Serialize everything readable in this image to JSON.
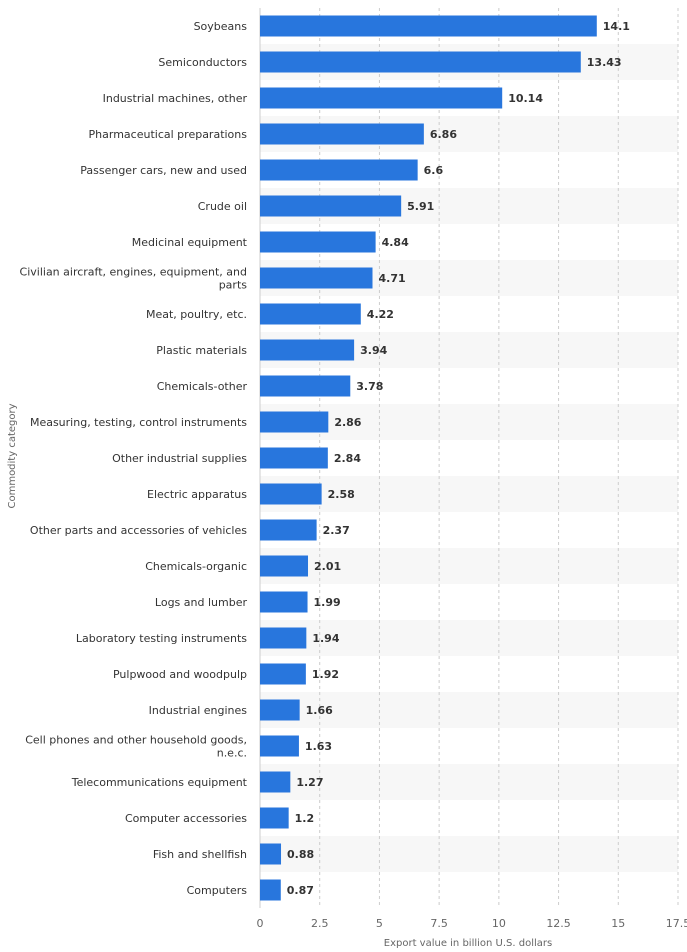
{
  "chart_data": {
    "type": "bar",
    "orientation": "horizontal",
    "categories": [
      "Soybeans",
      "Semiconductors",
      "Industrial machines, other",
      "Pharmaceutical preparations",
      "Passenger cars, new and used",
      "Crude oil",
      "Medicinal equipment",
      "Civilian aircraft, engines, equipment, and parts",
      "Meat, poultry, etc.",
      "Plastic materials",
      "Chemicals-other",
      "Measuring, testing, control instruments",
      "Other industrial supplies",
      "Electric apparatus",
      "Other parts and accessories of vehicles",
      "Chemicals-organic",
      "Logs and lumber",
      "Laboratory testing instruments",
      "Pulpwood and woodpulp",
      "Industrial engines",
      "Cell phones and other household goods, n.e.c.",
      "Telecommunications equipment",
      "Computer accessories",
      "Fish and shellfish",
      "Computers"
    ],
    "category_lines": [
      [
        "Soybeans"
      ],
      [
        "Semiconductors"
      ],
      [
        "Industrial machines, other"
      ],
      [
        "Pharmaceutical preparations"
      ],
      [
        "Passenger cars, new and used"
      ],
      [
        "Crude oil"
      ],
      [
        "Medicinal equipment"
      ],
      [
        "Civilian aircraft, engines, equipment, and",
        "parts"
      ],
      [
        "Meat, poultry, etc."
      ],
      [
        "Plastic materials"
      ],
      [
        "Chemicals-other"
      ],
      [
        "Measuring, testing, control instruments"
      ],
      [
        "Other industrial supplies"
      ],
      [
        "Electric apparatus"
      ],
      [
        "Other parts and accessories of vehicles"
      ],
      [
        "Chemicals-organic"
      ],
      [
        "Logs and lumber"
      ],
      [
        "Laboratory testing instruments"
      ],
      [
        "Pulpwood and woodpulp"
      ],
      [
        "Industrial engines"
      ],
      [
        "Cell phones and other household goods,",
        "n.e.c."
      ],
      [
        "Telecommunications equipment"
      ],
      [
        "Computer accessories"
      ],
      [
        "Fish and shellfish"
      ],
      [
        "Computers"
      ]
    ],
    "values": [
      14.1,
      13.43,
      10.14,
      6.86,
      6.6,
      5.91,
      4.84,
      4.71,
      4.22,
      3.94,
      3.78,
      2.86,
      2.84,
      2.58,
      2.37,
      2.01,
      1.99,
      1.94,
      1.92,
      1.66,
      1.63,
      1.27,
      1.2,
      0.88,
      0.87
    ],
    "value_labels": [
      "14.1",
      "13.43",
      "10.14",
      "6.86",
      "6.6",
      "5.91",
      "4.84",
      "4.71",
      "4.22",
      "3.94",
      "3.78",
      "2.86",
      "2.84",
      "2.58",
      "2.37",
      "2.01",
      "1.99",
      "1.94",
      "1.92",
      "1.66",
      "1.63",
      "1.27",
      "1.2",
      "0.88",
      "0.87"
    ],
    "xticks": [
      0,
      2.5,
      5,
      7.5,
      10,
      12.5,
      15,
      17.5
    ],
    "xtick_labels": [
      "0",
      "2.5",
      "5",
      "7.5",
      "10",
      "12.5",
      "15",
      "17.5"
    ],
    "xlim": [
      0,
      17.5
    ],
    "xlabel": "Export value in billion U.S. dollars",
    "ylabel": "Commodity category",
    "title": "",
    "grid": true,
    "colors": {
      "bar": "#2876dd",
      "grid": "#cccccc",
      "band": "#f7f7f7",
      "text": "#333333",
      "tick": "#666666"
    }
  }
}
